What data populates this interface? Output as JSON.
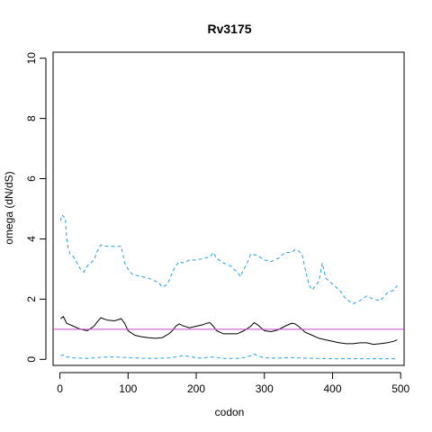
{
  "chart_data": {
    "type": "line",
    "title": "Rv3175",
    "xlabel": "codon",
    "ylabel": "omega (dN/dS)",
    "xlim": [
      -10,
      505
    ],
    "ylim": [
      -0.2,
      10.2
    ],
    "xticks": [
      0,
      100,
      200,
      300,
      400,
      500
    ],
    "yticks": [
      0,
      2,
      4,
      6,
      8,
      10
    ],
    "xtick_labels": [
      "0",
      "100",
      "200",
      "300",
      "400",
      "500"
    ],
    "ytick_labels": [
      "0",
      "2",
      "4",
      "6",
      "8",
      "10"
    ],
    "reference_line": {
      "y": 1.0,
      "color": "#cc44cc"
    },
    "grid": false,
    "legend": "none",
    "series": [
      {
        "style": "solid",
        "color": "#000000",
        "x": [
          1,
          5,
          10,
          15,
          20,
          30,
          40,
          50,
          55,
          60,
          70,
          80,
          90,
          95,
          100,
          110,
          120,
          130,
          140,
          150,
          160,
          165,
          170,
          175,
          180,
          190,
          200,
          210,
          215,
          220,
          225,
          230,
          240,
          250,
          260,
          270,
          280,
          285,
          290,
          300,
          310,
          320,
          330,
          340,
          345,
          350,
          360,
          370,
          380,
          390,
          400,
          410,
          420,
          430,
          440,
          450,
          460,
          470,
          480,
          490,
          495
        ],
        "y": [
          1.35,
          1.42,
          1.2,
          1.15,
          1.1,
          1.0,
          0.95,
          1.1,
          1.25,
          1.38,
          1.3,
          1.28,
          1.35,
          1.2,
          0.95,
          0.8,
          0.75,
          0.72,
          0.7,
          0.72,
          0.85,
          0.95,
          1.1,
          1.18,
          1.12,
          1.05,
          1.1,
          1.15,
          1.2,
          1.22,
          1.1,
          0.95,
          0.85,
          0.85,
          0.85,
          0.95,
          1.1,
          1.22,
          1.15,
          0.95,
          0.92,
          0.98,
          1.1,
          1.2,
          1.18,
          1.1,
          0.9,
          0.8,
          0.7,
          0.65,
          0.6,
          0.55,
          0.52,
          0.52,
          0.55,
          0.55,
          0.5,
          0.52,
          0.55,
          0.6,
          0.65
        ]
      },
      {
        "style": "dashed",
        "color": "#29a3e0",
        "x": [
          1,
          3,
          5,
          8,
          10,
          12,
          15,
          20,
          25,
          30,
          35,
          40,
          45,
          50,
          55,
          60,
          70,
          80,
          90,
          95,
          100,
          105,
          110,
          120,
          130,
          140,
          145,
          150,
          155,
          160,
          165,
          170,
          175,
          180,
          190,
          200,
          210,
          220,
          225,
          230,
          240,
          250,
          260,
          265,
          270,
          275,
          280,
          290,
          300,
          310,
          320,
          330,
          340,
          345,
          350,
          355,
          360,
          365,
          370,
          375,
          380,
          385,
          390,
          400,
          410,
          420,
          430,
          440,
          450,
          460,
          470,
          480,
          490,
          495
        ],
        "y": [
          4.6,
          4.8,
          4.75,
          4.7,
          4.0,
          3.7,
          3.5,
          3.4,
          3.2,
          3.0,
          2.9,
          3.1,
          3.2,
          3.3,
          3.6,
          3.8,
          3.75,
          3.75,
          3.75,
          3.2,
          3.0,
          2.85,
          2.8,
          2.75,
          2.7,
          2.6,
          2.55,
          2.4,
          2.45,
          2.6,
          2.9,
          3.1,
          3.25,
          3.2,
          3.3,
          3.3,
          3.35,
          3.4,
          3.55,
          3.35,
          3.2,
          3.1,
          2.9,
          2.75,
          3.0,
          3.2,
          3.5,
          3.45,
          3.3,
          3.25,
          3.35,
          3.55,
          3.55,
          3.65,
          3.6,
          3.5,
          3.0,
          2.5,
          2.3,
          2.45,
          2.6,
          3.2,
          2.7,
          2.5,
          2.3,
          2.0,
          1.85,
          1.95,
          2.1,
          2.0,
          1.95,
          2.2,
          2.3,
          2.45
        ]
      },
      {
        "style": "dashed",
        "color": "#29a3e0",
        "x": [
          1,
          5,
          10,
          20,
          40,
          60,
          80,
          100,
          120,
          140,
          160,
          170,
          180,
          190,
          200,
          210,
          220,
          230,
          240,
          260,
          270,
          280,
          285,
          290,
          300,
          320,
          340,
          360,
          380,
          400,
          420,
          440,
          460,
          480,
          495
        ],
        "y": [
          0.12,
          0.15,
          0.08,
          0.05,
          0.03,
          0.07,
          0.08,
          0.06,
          0.04,
          0.03,
          0.05,
          0.08,
          0.12,
          0.1,
          0.05,
          0.04,
          0.08,
          0.06,
          0.03,
          0.03,
          0.06,
          0.12,
          0.18,
          0.12,
          0.05,
          0.04,
          0.06,
          0.04,
          0.03,
          0.02,
          0.02,
          0.02,
          0.02,
          0.02,
          0.02
        ]
      }
    ]
  }
}
